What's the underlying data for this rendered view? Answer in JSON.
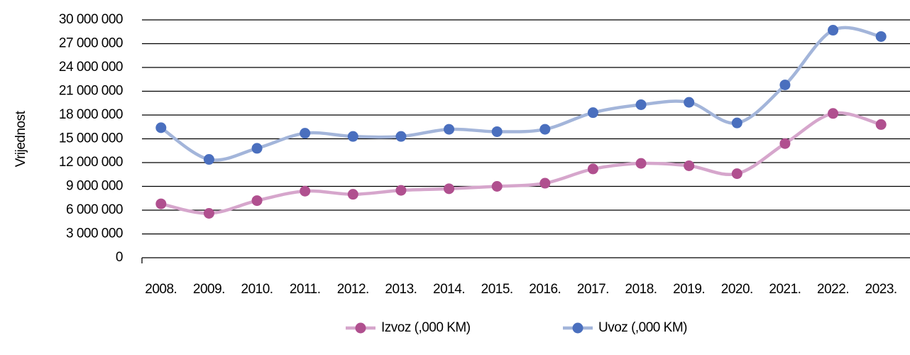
{
  "chart_data": {
    "type": "line",
    "y_label": "Vrijednost",
    "categories": [
      "2008.",
      "2009.",
      "2010.",
      "2011.",
      "2012.",
      "2013.",
      "2014.",
      "2015.",
      "2016.",
      "2017.",
      "2018.",
      "2019.",
      "2020.",
      "2021.",
      "2022.",
      "2023."
    ],
    "series": [
      {
        "name": "Izvoz (,000 KM)",
        "color": "#b0508f",
        "line_color": "#d6a6cc",
        "values": [
          6800000,
          5600000,
          7200000,
          8400000,
          8000000,
          8500000,
          8700000,
          9000000,
          9400000,
          11200000,
          11900000,
          11600000,
          10600000,
          14400000,
          18200000,
          16800000
        ]
      },
      {
        "name": "Uvoz (,000 KM)",
        "color": "#4a6fbe",
        "line_color": "#a3b5da",
        "values": [
          16400000,
          12400000,
          13800000,
          15700000,
          15300000,
          15300000,
          16200000,
          15900000,
          16200000,
          18300000,
          19300000,
          19600000,
          17000000,
          21800000,
          28700000,
          27900000
        ]
      }
    ],
    "ylim": [
      0,
      30000000
    ],
    "yticks": [
      0,
      {
        "value": 3000000,
        "label": "3 000 000"
      },
      {
        "value": 6000000,
        "label": "6 000 000"
      },
      {
        "value": 9000000,
        "label": "9 000 000"
      },
      {
        "value": 12000000,
        "label": "12 000 000"
      },
      {
        "value": 15000000,
        "label": "15 000 000"
      },
      {
        "value": 18000000,
        "label": "18 000 000"
      },
      {
        "value": 21000000,
        "label": "21 000 000"
      },
      {
        "value": 24000000,
        "label": "24 000 000"
      },
      {
        "value": 27000000,
        "label": "27 000 000"
      },
      {
        "value": 30000000,
        "label": "30 000 000"
      }
    ],
    "grid": true,
    "smooth": true,
    "legend": "bottom"
  }
}
